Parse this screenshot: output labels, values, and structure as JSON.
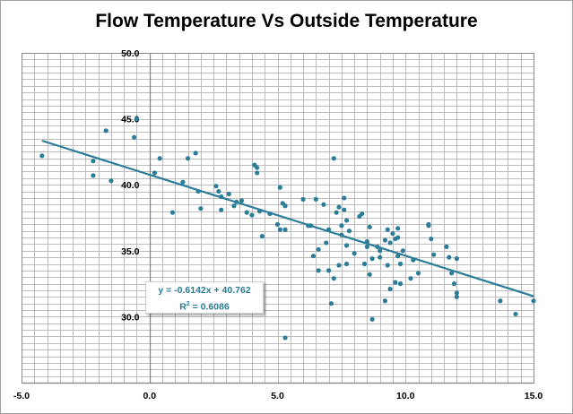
{
  "chart_data": {
    "type": "scatter",
    "title": "Flow Temperature Vs Outside Temperature",
    "xlabel": "",
    "ylabel": "",
    "xlim": [
      -5.0,
      15.0
    ],
    "ylim": [
      25.0,
      50.0
    ],
    "x_ticks": [
      "-5.0",
      "0.0",
      "5.0",
      "10.0",
      "15.0"
    ],
    "y_ticks": [
      "30.0",
      "35.0",
      "40.0",
      "45.0",
      "50.0"
    ],
    "x_tick_values": [
      -5,
      0,
      5,
      10,
      15
    ],
    "y_tick_values": [
      30,
      35,
      40,
      45,
      50
    ],
    "x_minor_step": 0.5,
    "y_minor_step": 0.5,
    "grid": true,
    "marker_color": "#2b7d99",
    "trendline_color": "#2b7d99",
    "trendline": {
      "type": "linear",
      "slope": -0.6142,
      "intercept": 40.762,
      "x_range": [
        -4.2,
        15.0
      ],
      "equation_label": "y = -0.6142x + 40.762",
      "r2_label_prefix": "R",
      "r2_label_sup": "2",
      "r2_label_suffix": " = 0.6086"
    },
    "series": [
      {
        "points": [
          [
            -4.2,
            42.2
          ],
          [
            -2.2,
            41.8
          ],
          [
            -2.2,
            40.7
          ],
          [
            -1.7,
            44.1
          ],
          [
            -1.5,
            40.3
          ],
          [
            -0.6,
            43.6
          ],
          [
            -0.5,
            45.0
          ],
          [
            0.2,
            40.9
          ],
          [
            0.4,
            42.0
          ],
          [
            0.9,
            37.9
          ],
          [
            1.3,
            40.2
          ],
          [
            1.5,
            42.0
          ],
          [
            1.8,
            42.4
          ],
          [
            1.9,
            39.5
          ],
          [
            2.0,
            38.2
          ],
          [
            2.6,
            39.9
          ],
          [
            2.7,
            39.5
          ],
          [
            2.8,
            38.1
          ],
          [
            2.8,
            39.1
          ],
          [
            3.1,
            39.3
          ],
          [
            3.3,
            38.4
          ],
          [
            3.4,
            38.7
          ],
          [
            3.6,
            38.8
          ],
          [
            3.8,
            37.9
          ],
          [
            4.0,
            37.7
          ],
          [
            4.1,
            41.5
          ],
          [
            4.2,
            41.3
          ],
          [
            4.2,
            40.9
          ],
          [
            4.3,
            38.0
          ],
          [
            4.4,
            36.1
          ],
          [
            4.7,
            37.8
          ],
          [
            5.0,
            37.0
          ],
          [
            5.1,
            36.6
          ],
          [
            5.1,
            39.8
          ],
          [
            5.2,
            38.6
          ],
          [
            5.3,
            38.4
          ],
          [
            5.3,
            36.6
          ],
          [
            5.3,
            28.4
          ],
          [
            6.0,
            38.9
          ],
          [
            6.2,
            36.9
          ],
          [
            6.3,
            36.9
          ],
          [
            6.4,
            34.6
          ],
          [
            6.5,
            38.9
          ],
          [
            6.6,
            35.1
          ],
          [
            6.6,
            33.5
          ],
          [
            6.8,
            38.5
          ],
          [
            6.9,
            35.6
          ],
          [
            7.0,
            33.5
          ],
          [
            7.0,
            36.6
          ],
          [
            7.1,
            31.0
          ],
          [
            7.2,
            32.9
          ],
          [
            7.2,
            42.0
          ],
          [
            7.3,
            37.9
          ],
          [
            7.4,
            38.3
          ],
          [
            7.4,
            33.9
          ],
          [
            7.5,
            36.9
          ],
          [
            7.5,
            36.2
          ],
          [
            7.6,
            39.0
          ],
          [
            7.6,
            38.1
          ],
          [
            7.7,
            37.3
          ],
          [
            7.7,
            35.4
          ],
          [
            7.7,
            34.0
          ],
          [
            7.8,
            36.5
          ],
          [
            8.0,
            34.8
          ],
          [
            8.2,
            37.6
          ],
          [
            8.3,
            37.8
          ],
          [
            8.4,
            34.0
          ],
          [
            8.5,
            35.3
          ],
          [
            8.5,
            35.7
          ],
          [
            8.6,
            36.8
          ],
          [
            8.6,
            33.2
          ],
          [
            8.7,
            34.4
          ],
          [
            8.7,
            29.8
          ],
          [
            8.9,
            35.3
          ],
          [
            9.0,
            35.0
          ],
          [
            9.0,
            34.5
          ],
          [
            9.2,
            35.8
          ],
          [
            9.2,
            31.2
          ],
          [
            9.3,
            33.9
          ],
          [
            9.3,
            36.6
          ],
          [
            9.4,
            35.6
          ],
          [
            9.4,
            32.1
          ],
          [
            9.5,
            36.3
          ],
          [
            9.6,
            35.9
          ],
          [
            9.6,
            32.6
          ],
          [
            9.7,
            36.7
          ],
          [
            9.7,
            36.0
          ],
          [
            9.7,
            34.6
          ],
          [
            9.8,
            34.0
          ],
          [
            9.8,
            32.5
          ],
          [
            9.9,
            35.0
          ],
          [
            10.2,
            32.9
          ],
          [
            10.3,
            34.3
          ],
          [
            10.5,
            33.3
          ],
          [
            10.9,
            37.0
          ],
          [
            10.9,
            36.9
          ],
          [
            11.0,
            35.9
          ],
          [
            11.1,
            34.7
          ],
          [
            11.6,
            35.3
          ],
          [
            11.7,
            34.5
          ],
          [
            11.8,
            33.3
          ],
          [
            11.9,
            32.5
          ],
          [
            12.0,
            34.4
          ],
          [
            12.0,
            31.8
          ],
          [
            12.0,
            31.5
          ],
          [
            13.7,
            31.2
          ],
          [
            14.3,
            30.2
          ],
          [
            15.0,
            31.2
          ]
        ]
      }
    ]
  }
}
